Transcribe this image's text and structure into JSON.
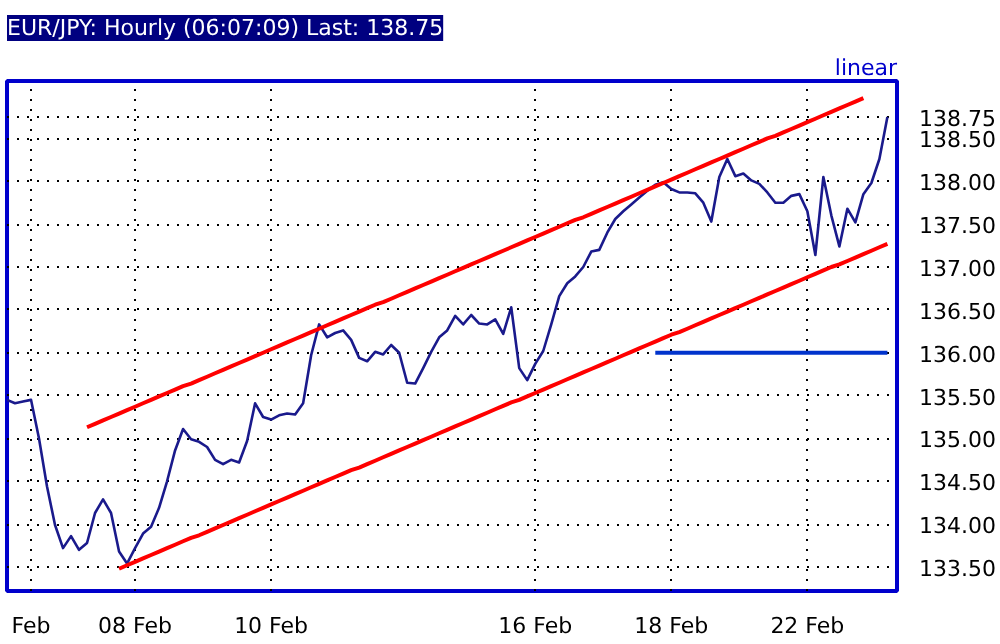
{
  "chart_data": {
    "type": "line",
    "title": "EUR/JPY: Hourly (06:07:09) Last: 138.75",
    "annotations": [
      "linear"
    ],
    "categories": [
      null,
      null,
      null,
      "Feb",
      null,
      null,
      null,
      null,
      null,
      null,
      null,
      null,
      null,
      null,
      null,
      null,
      "08 Feb",
      null,
      null,
      null,
      null,
      null,
      null,
      null,
      null,
      null,
      null,
      null,
      null,
      null,
      null,
      null,
      null,
      "10 Feb",
      null,
      null,
      null,
      null,
      null,
      null,
      null,
      null,
      null,
      null,
      null,
      null,
      null,
      null,
      null,
      null,
      null,
      null,
      null,
      null,
      null,
      null,
      null,
      null,
      null,
      null,
      null,
      null,
      null,
      null,
      null,
      null,
      "16 Feb",
      null,
      null,
      null,
      null,
      null,
      null,
      null,
      null,
      null,
      null,
      null,
      null,
      null,
      null,
      null,
      null,
      "18 Feb",
      null,
      null,
      null,
      null,
      null,
      null,
      null,
      null,
      null,
      null,
      null,
      null,
      null,
      null,
      null,
      null,
      "22 Feb",
      null,
      null,
      null,
      null,
      null,
      null,
      null,
      null,
      null,
      null
    ],
    "ylim": [
      133.22,
      139.17
    ],
    "yticks": [
      {
        "value": 133.5,
        "label": "133.50"
      },
      {
        "value": 134.0,
        "label": "134.00"
      },
      {
        "value": 134.5,
        "label": "134.50"
      },
      {
        "value": 135.0,
        "label": "135.00"
      },
      {
        "value": 135.5,
        "label": "135.50"
      },
      {
        "value": 136.0,
        "label": "136.00"
      },
      {
        "value": 136.5,
        "label": "136.50"
      },
      {
        "value": 137.0,
        "label": "137.00"
      },
      {
        "value": 137.5,
        "label": "137.50"
      },
      {
        "value": 138.0,
        "label": "138.00"
      },
      {
        "value": 138.5,
        "label": "138.50"
      },
      {
        "value": 138.75,
        "label": "138.75"
      }
    ],
    "grid": true,
    "line_style": "solid",
    "series": [
      {
        "color": "#1a1a8c",
        "values": [
          135.45,
          135.41,
          135.43,
          135.45,
          135.0,
          134.44,
          133.99,
          133.72,
          133.86,
          133.7,
          133.78,
          134.13,
          134.29,
          134.13,
          133.68,
          133.54,
          133.72,
          133.89,
          133.97,
          134.19,
          134.5,
          134.86,
          135.11,
          134.99,
          134.96,
          134.9,
          134.75,
          134.7,
          134.75,
          134.72,
          134.97,
          135.41,
          135.25,
          135.22,
          135.27,
          135.29,
          135.28,
          135.41,
          135.97,
          136.33,
          136.18,
          136.23,
          136.26,
          136.15,
          135.94,
          135.9,
          136.01,
          135.98,
          136.09,
          136.0,
          135.65,
          135.64,
          135.82,
          136.01,
          136.18,
          136.26,
          136.43,
          136.33,
          136.44,
          136.34,
          136.33,
          136.39,
          136.22,
          136.53,
          135.82,
          135.68,
          135.87,
          136.02,
          136.33,
          136.66,
          136.81,
          136.89,
          137.0,
          137.18,
          137.2,
          137.4,
          137.56,
          137.65,
          137.73,
          137.81,
          137.89,
          137.96,
          137.99,
          137.91,
          137.87,
          137.87,
          137.86,
          137.75,
          137.53,
          138.05,
          138.26,
          138.06,
          138.09,
          138.01,
          137.97,
          137.87,
          137.75,
          137.75,
          137.83,
          137.85,
          137.65,
          137.14,
          138.05,
          137.6,
          137.24,
          137.68,
          137.52,
          137.85,
          137.98,
          138.26,
          138.75
        ]
      },
      {
        "color": "#ff0000",
        "values": [
          null,
          null,
          null,
          null,
          null,
          null,
          null,
          null,
          null,
          null,
          135.13,
          135.17,
          135.21,
          135.25,
          135.29,
          135.33,
          135.37,
          135.41,
          135.45,
          135.49,
          135.53,
          135.57,
          135.61,
          135.64,
          135.68,
          135.72,
          135.76,
          135.8,
          135.84,
          135.88,
          135.92,
          135.96,
          136.0,
          136.04,
          136.08,
          136.12,
          136.16,
          136.2,
          136.24,
          136.28,
          136.32,
          136.36,
          136.4,
          136.44,
          136.48,
          136.52,
          136.56,
          136.59,
          136.63,
          136.67,
          136.71,
          136.75,
          136.79,
          136.83,
          136.87,
          136.91,
          136.95,
          136.99,
          137.03,
          137.07,
          137.11,
          137.15,
          137.19,
          137.23,
          137.27,
          137.31,
          137.35,
          137.39,
          137.43,
          137.47,
          137.51,
          137.55,
          137.58,
          137.62,
          137.66,
          137.7,
          137.74,
          137.78,
          137.82,
          137.86,
          137.9,
          137.94,
          137.98,
          138.02,
          138.06,
          138.1,
          138.14,
          138.18,
          138.22,
          138.26,
          138.3,
          138.34,
          138.38,
          138.42,
          138.46,
          138.5,
          138.53,
          138.57,
          138.61,
          138.65,
          138.69,
          138.73,
          138.77,
          138.81,
          138.85,
          138.89,
          138.93,
          138.97,
          null,
          null,
          null
        ]
      },
      {
        "color": "#ff0000",
        "values": [
          null,
          null,
          null,
          null,
          null,
          null,
          null,
          null,
          null,
          null,
          null,
          null,
          null,
          null,
          133.48,
          133.52,
          133.56,
          133.6,
          133.64,
          133.68,
          133.72,
          133.76,
          133.8,
          133.84,
          133.87,
          133.91,
          133.95,
          133.99,
          134.03,
          134.07,
          134.11,
          134.15,
          134.19,
          134.23,
          134.27,
          134.31,
          134.35,
          134.39,
          134.43,
          134.47,
          134.51,
          134.55,
          134.59,
          134.63,
          134.66,
          134.7,
          134.74,
          134.78,
          134.82,
          134.86,
          134.9,
          134.94,
          134.98,
          135.02,
          135.06,
          135.1,
          135.14,
          135.18,
          135.22,
          135.26,
          135.3,
          135.34,
          135.38,
          135.42,
          135.45,
          135.49,
          135.53,
          135.57,
          135.61,
          135.65,
          135.69,
          135.73,
          135.77,
          135.81,
          135.85,
          135.89,
          135.93,
          135.97,
          136.01,
          136.05,
          136.09,
          136.13,
          136.17,
          136.21,
          136.24,
          136.28,
          136.32,
          136.36,
          136.4,
          136.44,
          136.48,
          136.52,
          136.56,
          136.6,
          136.64,
          136.68,
          136.72,
          136.76,
          136.8,
          136.84,
          136.88,
          136.92,
          136.96,
          137.0,
          137.03,
          137.07,
          137.11,
          137.15,
          137.19,
          137.23,
          137.27
        ]
      },
      {
        "color": "#0033cc",
        "values": [
          null,
          null,
          null,
          null,
          null,
          null,
          null,
          null,
          null,
          null,
          null,
          null,
          null,
          null,
          null,
          null,
          null,
          null,
          null,
          null,
          null,
          null,
          null,
          null,
          null,
          null,
          null,
          null,
          null,
          null,
          null,
          null,
          null,
          null,
          null,
          null,
          null,
          null,
          null,
          null,
          null,
          null,
          null,
          null,
          null,
          null,
          null,
          null,
          null,
          null,
          null,
          null,
          null,
          null,
          null,
          null,
          null,
          null,
          null,
          null,
          null,
          null,
          null,
          null,
          null,
          null,
          null,
          null,
          null,
          null,
          null,
          null,
          null,
          null,
          null,
          null,
          null,
          null,
          null,
          null,
          null,
          136.0,
          136.0,
          136.0,
          136.0,
          136.0,
          136.0,
          136.0,
          136.0,
          136.0,
          136.0,
          136.0,
          136.0,
          136.0,
          136.0,
          136.0,
          136.0,
          136.0,
          136.0,
          136.0,
          136.0,
          136.0,
          136.0,
          136.0,
          136.0,
          136.0,
          136.0,
          136.0,
          136.0,
          136.0,
          136.0
        ]
      }
    ]
  }
}
